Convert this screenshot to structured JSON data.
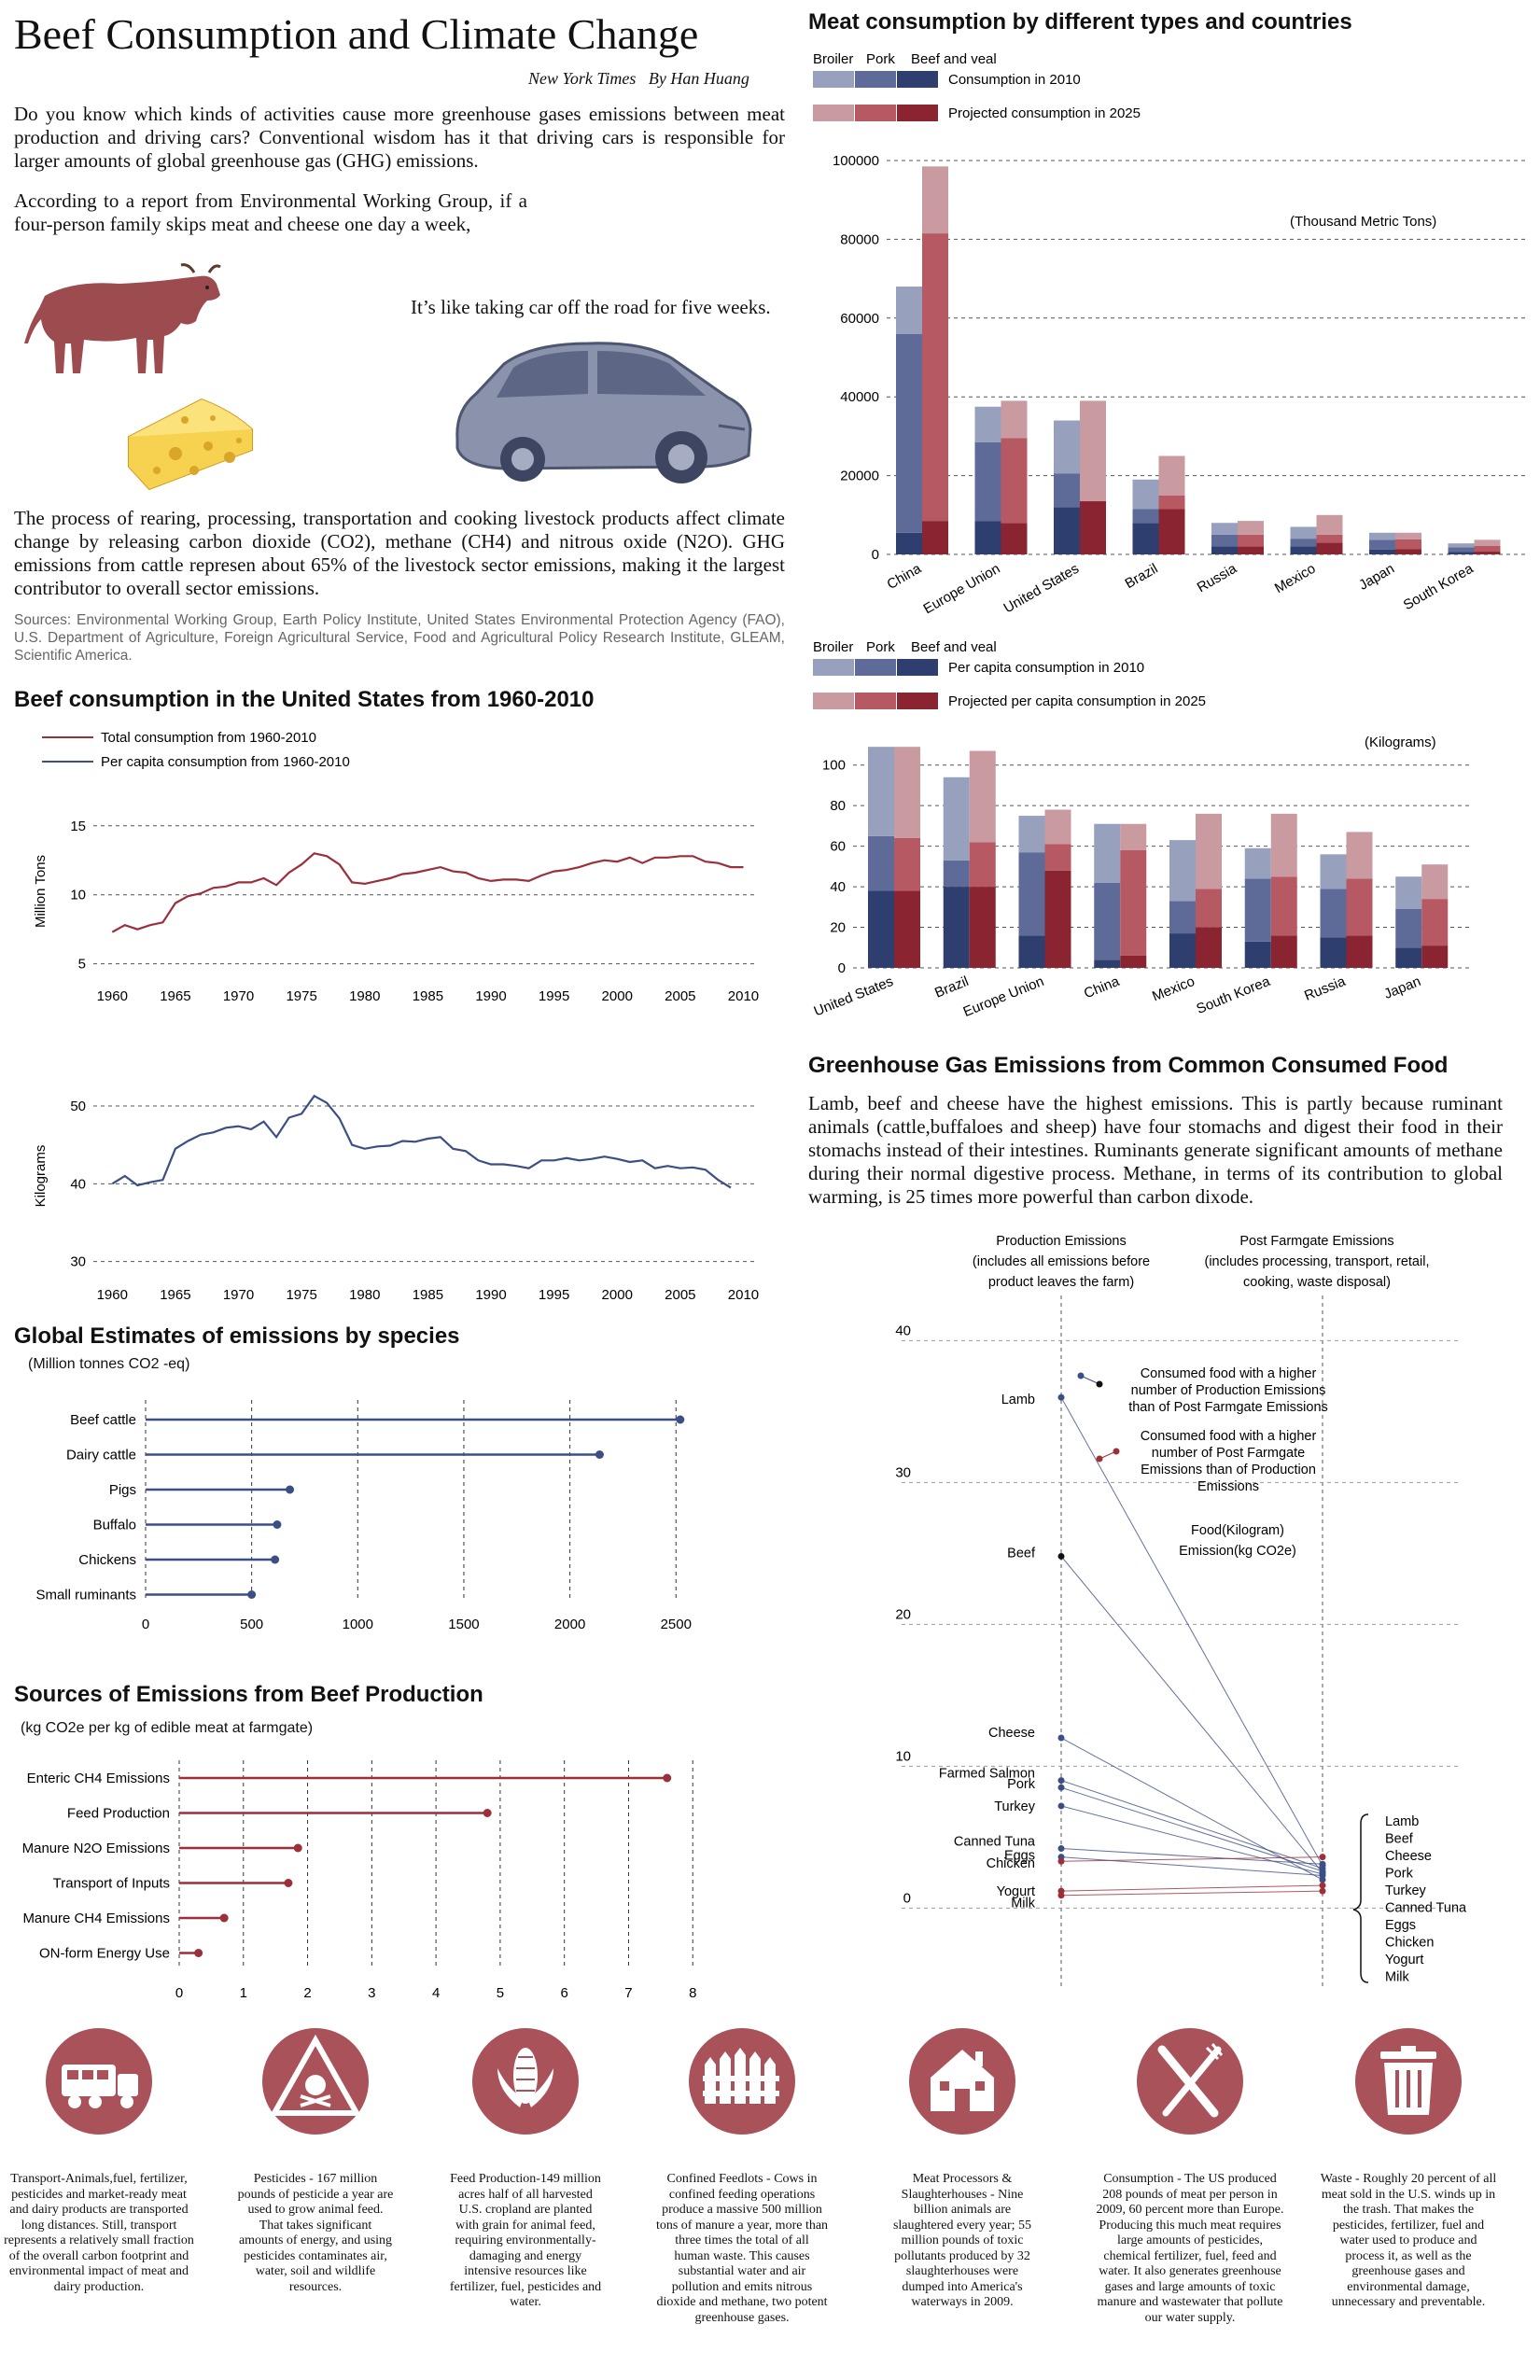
{
  "colors": {
    "red_dark": "#8a2430",
    "red_mid": "#b65963",
    "red_light": "#c99aa0",
    "blue_dark": "#2e3e6e",
    "blue_mid": "#5e6b98",
    "blue_light": "#97a0bd",
    "line_red": "#9b2f3a",
    "line_blue": "#3c4f85",
    "icon_red": "#a9525a"
  },
  "header": {
    "title": "Beef Consumption and Climate Change",
    "byline": "New York Times   By Han Huang",
    "intro": "Do you know which kinds of activities cause more greenhouse gases emissions between meat production and driving cars? Conventional wisdom has it that driving cars is responsible for larger amounts of global greenhouse gas (GHG) emissions.",
    "report": "According to a report from Environmental Working Group, if a four-person family skips meat and cheese one day a week,",
    "car_text": "It’s like taking car off the road for five weeks.",
    "process": "The process of rearing, processing, transportation and cooking livestock products affect climate change by releasing carbon dioxide (CO2), methane (CH4) and nitrous oxide (N2O). GHG emissions from cattle represen about 65% of the livestock sector emissions, making it the largest contributor to overall sector emissions.",
    "sources": "Sources: Environmental Working Group, Earth Policy Institute, United States Environmental Protection Agency (FAO), U.S. Department of Agriculture, Foreign Agricultural Service, Food and Agricultural Policy Research Institute, GLEAM, Scientific America."
  },
  "ghg_text": "Lamb, beef and cheese have the highest emissions. This is partly because ruminant animals (cattle,buffaloes and sheep) have four stomachs and digest their food in their stomachs instead of their intestines. Ruminants generate significant amounts of methane during their normal digestive process. Methane, in terms of its contribution to global warming, is 25 times more powerful than carbon dixode.",
  "icons": [
    {
      "name": "truck-icon",
      "text": "Transport-Animals,fuel, fertilizer, pesticides and market-ready meat and dairy products are transported long distances. Still, transport represents a relatively small fraction of the overall carbon footprint and environmental impact of meat and dairy production."
    },
    {
      "name": "poison-warning-icon",
      "text": "Pesticides - 167 million pounds of pesticide a year are used to grow animal feed. That takes significant amounts of energy, and using pesticides contaminates air, water, soil and wildlife resources."
    },
    {
      "name": "corn-icon",
      "text": "Feed Production-149 million acres half of all harvested U.S. cropland are planted with grain for animal feed, requiring environmentally-damaging and energy intensive resources like fertilizer, fuel, pesticides and water."
    },
    {
      "name": "fence-icon",
      "text": "Confined Feedlots - Cows in confined feeding operations produce a massive 500 million tons of manure a year, more than three times the total of all human waste. This causes substantial water and air pollution and emits nitrous dioxide and methane, two potent greenhouse gases."
    },
    {
      "name": "slaughterhouse-icon",
      "text": "Meat Processors & Slaughterhouses - Nine billion animals are slaughtered every year; 55 million pounds of toxic pollutants produced by 32 slaughterhouses were dumped into America's waterways in 2009."
    },
    {
      "name": "knife-fork-icon",
      "text": "Consumption - The US produced 208 pounds of meat per person in 2009, 60 percent more than Europe. Producing this much meat requires large amounts of pesticides, chemical fertilizer, fuel, feed and water. It also generates greenhouse gases and large amounts of toxic manure and wastewater that pollute our water supply."
    },
    {
      "name": "trash-can-icon",
      "text": "Waste - Roughly 20 percent of all meat sold in the U.S. winds up in the trash. That makes the pesticides, fertilizer, fuel and water used to produce and process it, as well as the greenhouse gases and environmental damage, unnecessary and preventable."
    }
  ],
  "chart_data": [
    {
      "id": "meat_total",
      "type": "bar",
      "title": "Meat consumption by different types and countries",
      "legend": {
        "types": [
          "Broiler",
          "Pork",
          "Beef and veal"
        ],
        "label_2010": "Consumption in 2010",
        "label_2025": "Projected consumption in 2025"
      },
      "unit_label": "(Thousand Metric Tons)",
      "categories": [
        "China",
        "Europe Union",
        "United States",
        "Brazil",
        "Russia",
        "Mexico",
        "Japan",
        "South Korea"
      ],
      "ylim": [
        0,
        100000
      ],
      "yticks": [
        0,
        20000,
        40000,
        60000,
        80000,
        100000
      ],
      "stack_order": [
        "Beef and veal",
        "Pork",
        "Broiler"
      ],
      "series_2010": [
        [
          5500,
          50500,
          12000
        ],
        [
          8500,
          20000,
          9000
        ],
        [
          12000,
          8500,
          13500
        ],
        [
          8000,
          3500,
          7500
        ],
        [
          2000,
          3000,
          3000
        ],
        [
          2000,
          2000,
          3000
        ],
        [
          1200,
          2500,
          1800
        ],
        [
          600,
          1200,
          1000
        ]
      ],
      "series_2025": [
        [
          8500,
          73000,
          17000
        ],
        [
          8000,
          21500,
          9500
        ],
        [
          13500,
          0,
          25500
        ],
        [
          11500,
          3500,
          10000
        ],
        [
          2000,
          3000,
          3500
        ],
        [
          3000,
          2000,
          5000
        ],
        [
          1300,
          2500,
          1700
        ],
        [
          700,
          1500,
          1500
        ]
      ]
    },
    {
      "id": "meat_per_capita",
      "type": "bar",
      "legend": {
        "types": [
          "Broiler",
          "Pork",
          "Beef and veal"
        ],
        "label_2010": "Per capita consumption in 2010",
        "label_2025": "Projected per capita consumption in 2025"
      },
      "unit_label": "(Kilograms)",
      "categories": [
        "United States",
        "Brazil",
        "Europe Union",
        "China",
        "Mexico",
        "South Korea",
        "Russia",
        "Japan"
      ],
      "ylim": [
        0,
        110
      ],
      "yticks": [
        0,
        20,
        40,
        60,
        80,
        100
      ],
      "stack_order": [
        "Beef and veal",
        "Pork",
        "Broiler"
      ],
      "series_2010": [
        [
          38,
          27,
          44
        ],
        [
          40,
          13,
          41
        ],
        [
          16,
          41,
          18
        ],
        [
          4,
          38,
          29
        ],
        [
          17,
          16,
          30
        ],
        [
          13,
          31,
          15
        ],
        [
          15,
          24,
          17
        ],
        [
          10,
          19,
          16
        ]
      ],
      "series_2025": [
        [
          38,
          26,
          45
        ],
        [
          40,
          22,
          45
        ],
        [
          48,
          13,
          17
        ],
        [
          6,
          52,
          13
        ],
        [
          20,
          19,
          37
        ],
        [
          16,
          29,
          31
        ],
        [
          16,
          28,
          23
        ],
        [
          11,
          23,
          17
        ]
      ]
    },
    {
      "id": "us_beef_total",
      "type": "line",
      "title": "Beef consumption in the United States from 1960-2010",
      "legend": [
        "Total  consumption from 1960-2010",
        "Per capita  consumption from 1960-2010"
      ],
      "ylabel": "Million Tons",
      "xlim": [
        1958.5,
        2011
      ],
      "ylim": [
        4.5,
        16
      ],
      "yticks": [
        5,
        10,
        15
      ],
      "xticks": [
        1960,
        1965,
        1970,
        1975,
        1980,
        1985,
        1990,
        1995,
        2000,
        2005,
        2010
      ],
      "x": [
        1960,
        1961,
        1962,
        1963,
        1964,
        1965,
        1966,
        1967,
        1968,
        1969,
        1970,
        1971,
        1972,
        1973,
        1974,
        1975,
        1976,
        1977,
        1978,
        1979,
        1980,
        1981,
        1982,
        1983,
        1984,
        1985,
        1986,
        1987,
        1988,
        1989,
        1990,
        1991,
        1992,
        1993,
        1994,
        1995,
        1996,
        1997,
        1998,
        1999,
        2000,
        2001,
        2002,
        2003,
        2004,
        2005,
        2006,
        2007,
        2008,
        2009,
        2010
      ],
      "y": [
        7.3,
        7.8,
        7.5,
        7.8,
        8.0,
        9.4,
        9.9,
        10.1,
        10.5,
        10.6,
        10.9,
        10.9,
        11.2,
        10.7,
        11.6,
        12.2,
        13.0,
        12.8,
        12.2,
        10.9,
        10.8,
        11.0,
        11.2,
        11.5,
        11.6,
        11.8,
        12.0,
        11.7,
        11.6,
        11.2,
        11.0,
        11.1,
        11.1,
        11.0,
        11.4,
        11.7,
        11.8,
        12.0,
        12.3,
        12.5,
        12.4,
        12.7,
        12.3,
        12.7,
        12.7,
        12.8,
        12.8,
        12.4,
        12.3,
        12.0,
        12.0
      ]
    },
    {
      "id": "us_beef_per_capita",
      "type": "line",
      "ylabel": "Kilograms",
      "xlim": [
        1958.5,
        2011
      ],
      "ylim": [
        29,
        53
      ],
      "yticks": [
        30,
        40,
        50
      ],
      "xticks": [
        1960,
        1965,
        1970,
        1975,
        1980,
        1985,
        1990,
        1995,
        2000,
        2005,
        2010
      ],
      "x": [
        1960,
        1961,
        1962,
        1963,
        1964,
        1965,
        1966,
        1967,
        1968,
        1969,
        1970,
        1971,
        1972,
        1973,
        1974,
        1975,
        1976,
        1977,
        1978,
        1979,
        1980,
        1981,
        1982,
        1983,
        1984,
        1985,
        1986,
        1987,
        1988,
        1989,
        1990,
        1991,
        1992,
        1993,
        1994,
        1995,
        1996,
        1997,
        1998,
        1999,
        2000,
        2001,
        2002,
        2003,
        2004,
        2005,
        2006,
        2007,
        2008,
        2009
      ],
      "y": [
        40.0,
        41.0,
        39.8,
        40.2,
        40.5,
        44.5,
        45.5,
        46.3,
        46.6,
        47.2,
        47.4,
        47.0,
        48.0,
        46.0,
        48.5,
        49.0,
        51.3,
        50.4,
        48.4,
        45.0,
        44.5,
        44.8,
        44.9,
        45.5,
        45.4,
        45.8,
        46.0,
        44.5,
        44.2,
        43.0,
        42.5,
        42.5,
        42.3,
        42.0,
        43.0,
        43.0,
        43.3,
        43.0,
        43.2,
        43.5,
        43.2,
        42.8,
        43.0,
        42.0,
        42.3,
        42.0,
        42.1,
        41.8,
        40.5,
        39.5
      ]
    },
    {
      "id": "species",
      "type": "bar",
      "orientation": "horizontal",
      "title": "Global Estimates of emissions by species",
      "subtitle": "(Million tonnes CO2 -eq)",
      "categories": [
        "Beef cattle",
        "Dairy cattle",
        "Pigs",
        "Buffalo",
        "Chickens",
        "Small ruminants"
      ],
      "values": [
        2520,
        2140,
        680,
        620,
        610,
        500
      ],
      "xlim": [
        0,
        2600
      ],
      "xticks": [
        0,
        500,
        1000,
        1500,
        2000,
        2500
      ]
    },
    {
      "id": "beef_sources",
      "type": "bar",
      "orientation": "horizontal",
      "title": "Sources of Emissions from Beef Production",
      "subtitle": "(kg CO2e per kg of edible meat at farmgate)",
      "categories": [
        "Enteric CH4 Emissions",
        "Feed Production",
        "Manure N2O Emissions",
        "Transport of Inputs",
        "Manure CH4 Emissions",
        "ON-form Energy Use"
      ],
      "values": [
        7.6,
        4.8,
        1.85,
        1.7,
        0.7,
        0.3
      ],
      "xlim": [
        0,
        8.2
      ],
      "xticks": [
        0,
        1,
        2,
        3,
        4,
        5,
        6,
        7,
        8
      ]
    },
    {
      "id": "ghg_slope",
      "type": "line",
      "title": "Greenhouse Gas Emissions from Common Consumed Food",
      "col1": [
        "Production Emissions",
        "(includes all emissions before",
        "product leaves the farm)"
      ],
      "col2": [
        "Post Farmgate Emissions",
        "(includes processing, transport, retail,",
        "cooking, waste disposal)"
      ],
      "legend_blue": [
        "Consumed food with a higher",
        "number of Production Emissions",
        "than of Post Farmgate Emissions"
      ],
      "legend_red": [
        "Consumed food with a  higher",
        "number of Post Farmgate",
        "Emissions than of Production",
        "Emissions"
      ],
      "unit_label": [
        "Food(Kilogram)",
        "Emission(kg CO2e)"
      ],
      "ylim": [
        -3,
        42
      ],
      "yticks": [
        0,
        10,
        20,
        30,
        40
      ],
      "foods": [
        {
          "name": "Lamb",
          "production": 36.0,
          "post": 3.0,
          "higher": "production"
        },
        {
          "name": "Beef",
          "production": 24.8,
          "post": 2.5,
          "higher": "production"
        },
        {
          "name": "Cheese",
          "production": 12.0,
          "post": 2.0,
          "higher": "production"
        },
        {
          "name": "Farmed Salmon",
          "production": 9.0,
          "post": 2.8,
          "higher": "production"
        },
        {
          "name": "Pork",
          "production": 8.5,
          "post": 2.6,
          "higher": "production"
        },
        {
          "name": "Turkey",
          "production": 7.2,
          "post": 2.4,
          "higher": "production"
        },
        {
          "name": "Canned Tuna",
          "production": 4.2,
          "post": 3.1,
          "higher": "production"
        },
        {
          "name": "Eggs",
          "production": 3.6,
          "post": 2.3,
          "higher": "production"
        },
        {
          "name": "Chicken",
          "production": 3.3,
          "post": 3.6,
          "higher": "post"
        },
        {
          "name": "Yogurt",
          "production": 1.2,
          "post": 1.6,
          "higher": "post"
        },
        {
          "name": "Milk",
          "production": 0.9,
          "post": 1.2,
          "higher": "post"
        }
      ],
      "right_labels": [
        "Lamb",
        "Beef",
        "Cheese",
        "Pork",
        "Turkey",
        "Canned Tuna",
        "Eggs",
        "Chicken",
        "Yogurt",
        "Milk"
      ]
    }
  ]
}
